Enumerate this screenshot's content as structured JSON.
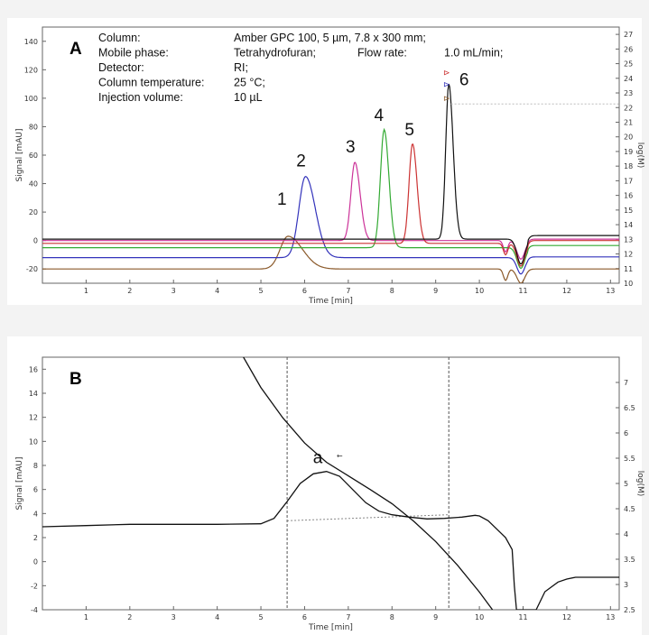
{
  "chart_data": [
    {
      "panel": "A",
      "type": "line",
      "xlabel": "Time [min]",
      "ylabel": "Signal [mAU]",
      "y2label": "log(M)",
      "xlim": [
        0,
        13.2
      ],
      "ylim": [
        -30,
        150
      ],
      "y2lim": [
        10,
        27.5
      ],
      "x_ticks": [
        1,
        2,
        3,
        4,
        5,
        6,
        7,
        8,
        9,
        10,
        11,
        12,
        13
      ],
      "y_ticks": [
        -20,
        0,
        20,
        40,
        60,
        80,
        100,
        120,
        140
      ],
      "y2_ticks": [
        10,
        11,
        12,
        13,
        14,
        15,
        16,
        17,
        18,
        19,
        20,
        21,
        22,
        23,
        24,
        25,
        26,
        27
      ],
      "grid": false,
      "info": [
        {
          "label": "Column:",
          "value": "Amber GPC 100, 5 µm, 7.8 x 300 mm;"
        },
        {
          "label": "Mobile phase:",
          "value": "Tetrahydrofuran;",
          "extra_label": "Flow rate:",
          "extra_value": "1.0 mL/min;"
        },
        {
          "label": "Detector:",
          "value": "RI;"
        },
        {
          "label": "Column temperature:",
          "value": "25 °C;"
        },
        {
          "label": "Injection volume:",
          "value": "10 µL"
        }
      ],
      "peak_labels": [
        {
          "text": "1",
          "x": 5.48,
          "y": 25
        },
        {
          "text": "2",
          "x": 5.92,
          "y": 52
        },
        {
          "text": "3",
          "x": 7.05,
          "y": 62
        },
        {
          "text": "4",
          "x": 7.7,
          "y": 84
        },
        {
          "text": "5",
          "x": 8.4,
          "y": 74
        },
        {
          "text": "6",
          "x": 9.65,
          "y": 109
        }
      ],
      "series": [
        {
          "color": "#8b5a2b",
          "baseline": -20,
          "peak_x": 5.62,
          "peak_height": 23,
          "peak_width": 0.18,
          "tail": 0.5
        },
        {
          "color": "#3333bb",
          "baseline": -12,
          "peak_x": 6.02,
          "peak_height": 57,
          "peak_width": 0.15,
          "tail": 0.25
        },
        {
          "color": "#cc3399",
          "baseline": 0,
          "peak_x": 7.15,
          "peak_height": 55,
          "peak_width": 0.09,
          "tail": 0.1
        },
        {
          "color": "#33aa33",
          "baseline": -5,
          "peak_x": 7.82,
          "peak_height": 83,
          "peak_width": 0.085,
          "tail": 0.08
        },
        {
          "color": "#cc3333",
          "baseline": -2,
          "peak_x": 8.47,
          "peak_height": 70,
          "peak_width": 0.08,
          "tail": 0.08
        },
        {
          "color": "#111111",
          "baseline": 1,
          "peak_x": 9.3,
          "peak_height": 109,
          "peak_width": 0.07,
          "tail": 0.1
        }
      ]
    },
    {
      "panel": "B",
      "type": "line",
      "xlabel": "Time [min]",
      "ylabel": "Signal [mAU]",
      "y2label": "log(M)",
      "xlim": [
        0,
        13.2
      ],
      "ylim": [
        -4,
        17
      ],
      "y2lim": [
        2.5,
        7.5
      ],
      "x_ticks": [
        1,
        2,
        3,
        4,
        5,
        6,
        7,
        8,
        9,
        10,
        11,
        12,
        13
      ],
      "y_ticks": [
        -4,
        -2,
        0,
        2,
        4,
        6,
        8,
        10,
        12,
        14,
        16
      ],
      "y2_ticks": [
        2.5,
        3,
        3.5,
        4,
        4.5,
        5,
        5.5,
        6,
        6.5,
        7
      ],
      "grid": false,
      "peak_label": {
        "text": "a",
        "x": 6.3,
        "y": 8.2
      },
      "vlines": [
        5.6,
        9.3
      ],
      "baseline_segment": {
        "x": [
          5.6,
          9.3
        ],
        "y": [
          3.4,
          3.9
        ]
      },
      "signal": {
        "x": [
          0,
          1,
          2,
          3,
          4,
          5,
          5.3,
          5.6,
          5.9,
          6.2,
          6.5,
          6.8,
          7.1,
          7.4,
          7.7,
          8.0,
          8.4,
          8.8,
          9.2,
          9.6,
          9.9,
          10.0,
          10.2,
          10.4,
          10.6,
          10.75,
          10.8,
          10.85,
          11.3,
          11.5,
          11.8,
          12.0,
          12.2,
          13.2
        ],
        "y": [
          2.9,
          3.0,
          3.1,
          3.1,
          3.1,
          3.15,
          3.6,
          5.0,
          6.5,
          7.3,
          7.5,
          7.1,
          6.0,
          4.9,
          4.2,
          3.9,
          3.7,
          3.55,
          3.6,
          3.7,
          3.85,
          3.8,
          3.4,
          2.7,
          2.0,
          1.0,
          -2.0,
          -4.0,
          -4.0,
          -2.5,
          -1.7,
          -1.45,
          -1.3,
          -1.3
        ]
      },
      "calibration": {
        "x": [
          4.6,
          5.0,
          5.5,
          6.0,
          6.5,
          7.0,
          7.5,
          8.0,
          8.5,
          9.0,
          9.5,
          10.0,
          10.3
        ],
        "y": [
          7.5,
          6.9,
          6.3,
          5.8,
          5.42,
          5.15,
          4.88,
          4.6,
          4.25,
          3.85,
          3.38,
          2.85,
          2.5
        ]
      }
    }
  ]
}
